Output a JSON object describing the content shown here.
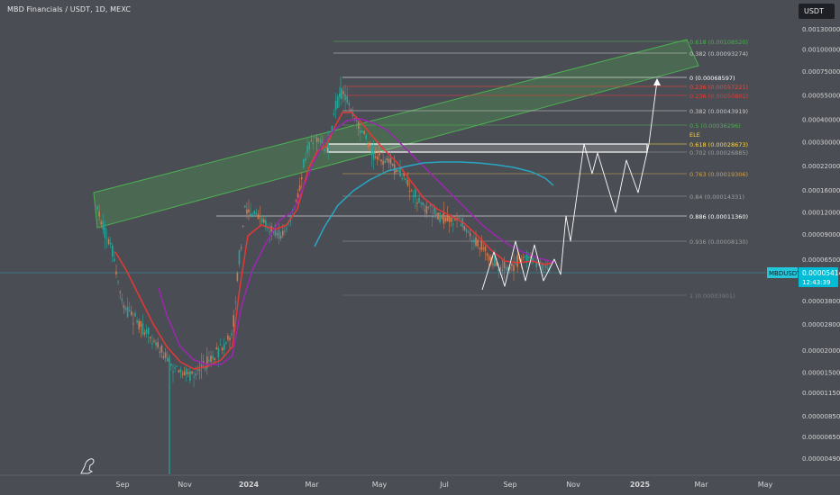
{
  "header": {
    "title": "MBD Financials / USDT, 1D, MEXC",
    "unit_badge": "USDT"
  },
  "chart_data": {
    "type": "candlestick-with-fibonacci",
    "symbol": "MBDUSDT",
    "price_scale": "log",
    "x_ticks": [
      "Sep",
      "Nov",
      "2024",
      "Mar",
      "May",
      "Jul",
      "Sep",
      "Nov",
      "2025",
      "Mar",
      "May"
    ],
    "y_ticks": [
      "0.00130000",
      "0.00100000",
      "0.00075000",
      "0.00055000",
      "0.00040000",
      "0.00030000",
      "0.00022000",
      "0.00016000",
      "0.00012000",
      "0.00009000",
      "0.00006500",
      "0.00003800",
      "0.00002800",
      "0.00002000",
      "0.00001500",
      "0.00001150",
      "0.00000850",
      "0.00000650",
      "0.00000490"
    ],
    "current_price": {
      "label": "MBDUSDT",
      "value": "0.00005414",
      "countdown": "12:43:39"
    },
    "fib_levels": [
      {
        "label": "0.618 (0.00108520)",
        "color": "#4caf50"
      },
      {
        "label": "0.382 (0.00093274)",
        "color": "#c8c8c8"
      },
      {
        "label": "0 (0.00068597)",
        "color": "#ffffff"
      },
      {
        "label": "0.236 (0.00057221)",
        "color": "#f44336"
      },
      {
        "label": "0.236 (0.00050801)",
        "color": "#e53935"
      },
      {
        "label": "0.382 (0.00043919)",
        "color": "#c8c8c8"
      },
      {
        "label": "0.5 (0.00036296)",
        "color": "#4caf50"
      },
      {
        "label": "0.618 (0.00028673)",
        "color": "#ffd740"
      },
      {
        "label": "0.702 (0.00026885)",
        "color": "#9e9e9e"
      },
      {
        "label": "0.763 (0.00019306)",
        "color": "#c8a052"
      },
      {
        "label": "0.84 (0.00014331)",
        "color": "#9e9e9e"
      },
      {
        "label": "0.886 (0.00011360)",
        "color": "#ffffff"
      },
      {
        "label": "0.936 (0.00008130)",
        "color": "#9e9e9e"
      },
      {
        "label": "1 (0.00003901)",
        "color": "#7a7a7a"
      }
    ],
    "annotations": [
      "ELE"
    ],
    "colors": {
      "up": "#26a69a",
      "down": "#cd7b52",
      "ma_fast": "#e53935",
      "ma_slow": "#9c27b0",
      "ma_long": "#26a8c4",
      "channel": "#4caf50",
      "projection": "#ffffff"
    }
  }
}
